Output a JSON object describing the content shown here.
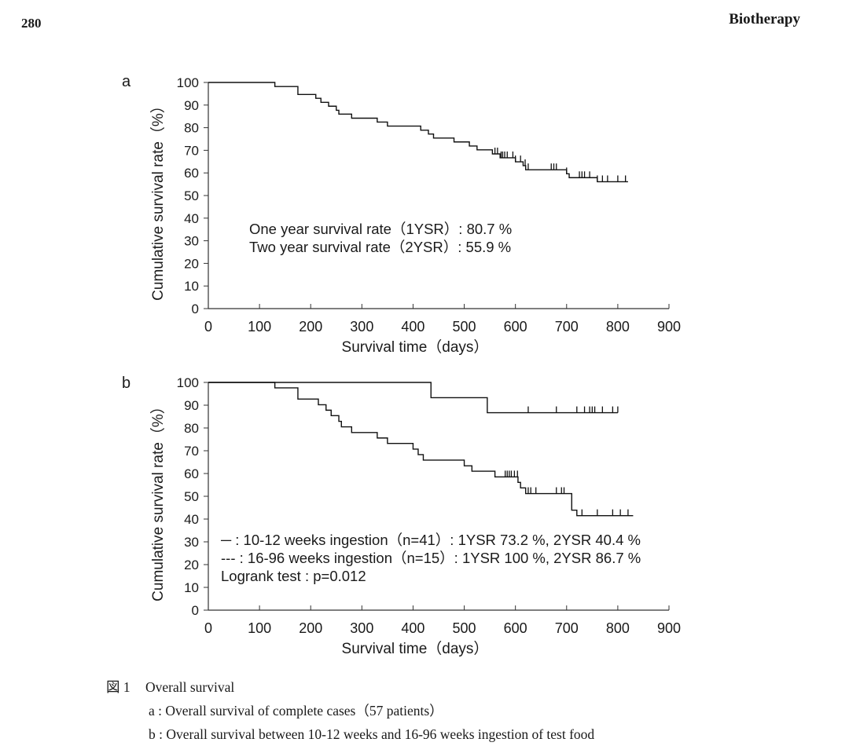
{
  "header": {
    "page_number": "280",
    "journal": "Biotherapy"
  },
  "chart_data": [
    {
      "panel_label": "a",
      "type": "line",
      "style": "kaplan-meier",
      "xlabel": "Survival time（days）",
      "ylabel": "Cumulative survival rate（%）",
      "xlim": [
        0,
        900
      ],
      "ylim": [
        0,
        100
      ],
      "xticks": [
        0,
        100,
        200,
        300,
        400,
        500,
        600,
        700,
        800,
        900
      ],
      "yticks": [
        0,
        10,
        20,
        30,
        40,
        50,
        60,
        70,
        80,
        90,
        100
      ],
      "annotations": [
        "One year survival rate（1YSR）: 80.7 %",
        "Two year survival rate（2YSR）: 55.9 %"
      ],
      "series": [
        {
          "name": "complete cases",
          "dashed": false,
          "steps": [
            [
              0,
              100
            ],
            [
              130,
              98.2
            ],
            [
              175,
              94.7
            ],
            [
              210,
              93.0
            ],
            [
              220,
              91.2
            ],
            [
              235,
              89.5
            ],
            [
              250,
              87.7
            ],
            [
              255,
              86.0
            ],
            [
              280,
              84.2
            ],
            [
              330,
              82.5
            ],
            [
              350,
              80.7
            ],
            [
              360,
              80.7
            ],
            [
              400,
              80.7
            ],
            [
              415,
              78.9
            ],
            [
              430,
              77.2
            ],
            [
              440,
              75.4
            ],
            [
              480,
              73.7
            ],
            [
              510,
              71.9
            ],
            [
              525,
              70.2
            ],
            [
              555,
              68.4
            ],
            [
              570,
              66.7
            ],
            [
              590,
              66.7
            ],
            [
              600,
              64.9
            ],
            [
              615,
              63.2
            ],
            [
              620,
              61.4
            ],
            [
              680,
              61.4
            ],
            [
              700,
              59.6
            ],
            [
              705,
              57.9
            ],
            [
              760,
              56.1
            ],
            [
              820,
              56.1
            ]
          ],
          "censored": [
            560,
            565,
            572,
            575,
            579,
            584,
            595,
            600,
            610,
            619,
            625,
            670,
            675,
            680,
            700,
            725,
            730,
            735,
            745,
            760,
            770,
            780,
            800,
            815
          ]
        }
      ]
    },
    {
      "panel_label": "b",
      "type": "line",
      "style": "kaplan-meier",
      "xlabel": "Survival time（days）",
      "ylabel": "Cumulative survival rate（%）",
      "xlim": [
        0,
        900
      ],
      "ylim": [
        0,
        100
      ],
      "xticks": [
        0,
        100,
        200,
        300,
        400,
        500,
        600,
        700,
        800,
        900
      ],
      "yticks": [
        0,
        10,
        20,
        30,
        40,
        50,
        60,
        70,
        80,
        90,
        100
      ],
      "legend": [
        "─ : 10-12 weeks ingestion（n=41）: 1YSR 73.2 %, 2YSR 40.4 %",
        "--- : 16-96 weeks ingestion（n=15）: 1YSR 100 %, 2YSR 86.7 %",
        "Logrank test : p=0.012"
      ],
      "series": [
        {
          "name": "10-12 weeks ingestion (n=41)",
          "dashed": false,
          "steps": [
            [
              0,
              100
            ],
            [
              130,
              97.6
            ],
            [
              175,
              92.7
            ],
            [
              215,
              90.2
            ],
            [
              230,
              87.8
            ],
            [
              240,
              85.4
            ],
            [
              255,
              82.9
            ],
            [
              260,
              80.5
            ],
            [
              280,
              78.0
            ],
            [
              330,
              75.6
            ],
            [
              350,
              73.2
            ],
            [
              400,
              70.7
            ],
            [
              410,
              68.3
            ],
            [
              420,
              65.9
            ],
            [
              470,
              65.9
            ],
            [
              500,
              63.4
            ],
            [
              515,
              61.0
            ],
            [
              550,
              61.0
            ],
            [
              560,
              58.5
            ],
            [
              605,
              56.1
            ],
            [
              610,
              53.7
            ],
            [
              620,
              51.2
            ],
            [
              700,
              51.2
            ],
            [
              710,
              43.9
            ],
            [
              720,
              41.5
            ],
            [
              830,
              41.5
            ]
          ],
          "censored": [
            580,
            584,
            588,
            592,
            598,
            604,
            625,
            630,
            640,
            680,
            690,
            695,
            730,
            760,
            790,
            805,
            820
          ]
        },
        {
          "name": "16-96 weeks ingestion (n=15)",
          "dashed": false,
          "steps": [
            [
              0,
              100
            ],
            [
              430,
              100
            ],
            [
              435,
              93.3
            ],
            [
              540,
              93.3
            ],
            [
              545,
              86.7
            ],
            [
              800,
              86.7
            ]
          ],
          "censored": [
            625,
            680,
            720,
            735,
            745,
            750,
            755,
            770,
            790,
            800
          ]
        }
      ]
    }
  ],
  "caption": {
    "label": "図 1",
    "title": "Overall survival",
    "line_a": "a : Overall survival of complete cases（57 patients）",
    "line_b": "b : Overall survival between 10-12 weeks and 16-96 weeks ingestion of test food"
  }
}
